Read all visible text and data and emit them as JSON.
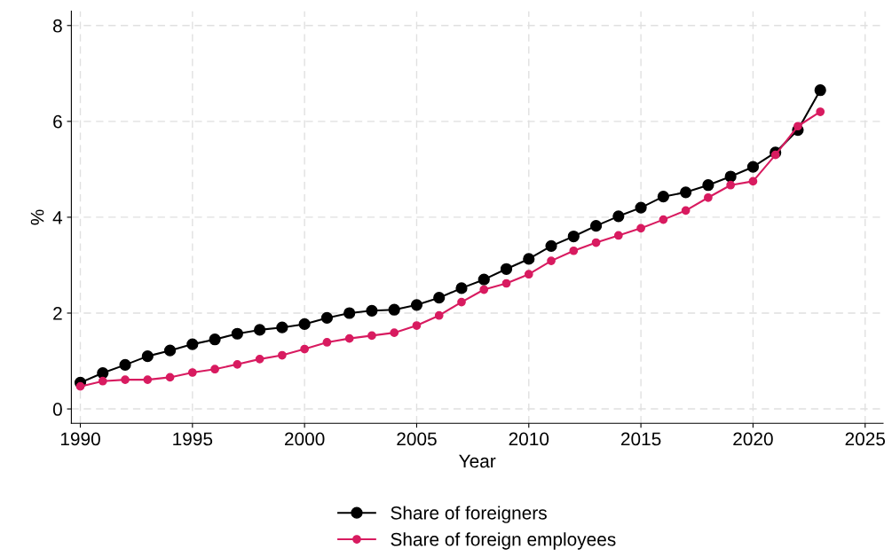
{
  "chart_data": {
    "type": "line",
    "xlabel": "Year",
    "ylabel": "%",
    "x": [
      1990,
      1991,
      1992,
      1993,
      1994,
      1995,
      1996,
      1997,
      1998,
      1999,
      2000,
      2001,
      2002,
      2003,
      2004,
      2005,
      2006,
      2007,
      2008,
      2009,
      2010,
      2011,
      2012,
      2013,
      2014,
      2015,
      2016,
      2017,
      2018,
      2019,
      2020,
      2021,
      2022,
      2023
    ],
    "series": [
      {
        "name": "Share of foreigners",
        "color": "#000000",
        "values": [
          0.55,
          0.75,
          0.92,
          1.1,
          1.22,
          1.35,
          1.45,
          1.57,
          1.65,
          1.7,
          1.77,
          1.9,
          2.0,
          2.05,
          2.07,
          2.17,
          2.32,
          2.52,
          2.7,
          2.92,
          3.13,
          3.4,
          3.6,
          3.82,
          4.02,
          4.2,
          4.43,
          4.52,
          4.67,
          4.85,
          5.05,
          5.35,
          5.82,
          6.65
        ]
      },
      {
        "name": "Share of foreign employees",
        "color": "#d81b60",
        "values": [
          0.47,
          0.58,
          0.61,
          0.61,
          0.66,
          0.76,
          0.83,
          0.93,
          1.04,
          1.12,
          1.25,
          1.39,
          1.47,
          1.53,
          1.59,
          1.74,
          1.95,
          2.23,
          2.49,
          2.62,
          2.81,
          3.09,
          3.3,
          3.47,
          3.62,
          3.77,
          3.95,
          4.14,
          4.41,
          4.67,
          4.75,
          5.3,
          5.9,
          6.2
        ]
      }
    ],
    "xlim": [
      1989.6,
      2025.8
    ],
    "xticks": [
      1990,
      1995,
      2000,
      2005,
      2010,
      2015,
      2020,
      2025
    ],
    "ylim": [
      -0.3,
      8.3
    ],
    "yticks": [
      0,
      2,
      4,
      6,
      8
    ],
    "grid": true,
    "legend": "bottom",
    "marker": "circle",
    "line_style": "solid"
  }
}
